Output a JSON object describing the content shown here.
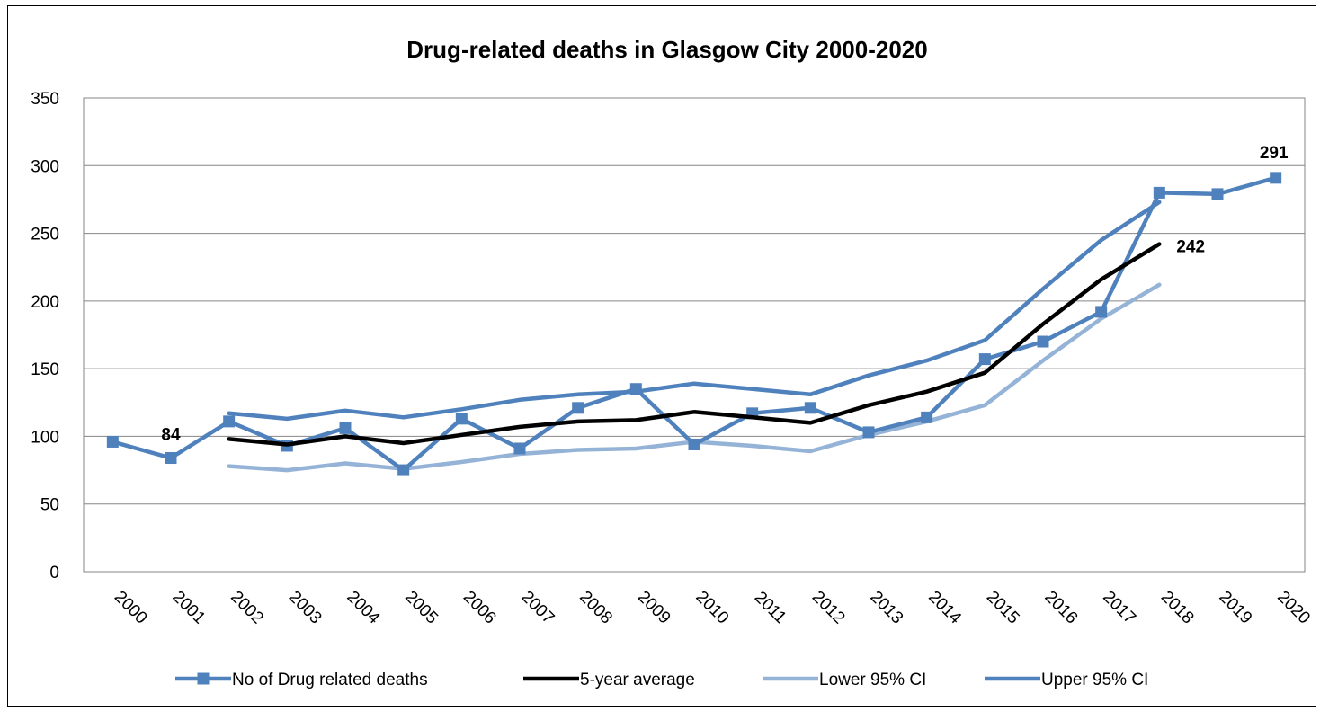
{
  "chart_data": {
    "type": "line",
    "title": "Drug-related deaths in Glasgow City 2000-2020",
    "xlabel": "",
    "ylabel": "",
    "categories": [
      "2000",
      "2001",
      "2002",
      "2003",
      "2004",
      "2005",
      "2006",
      "2007",
      "2008",
      "2009",
      "2010",
      "2011",
      "2012",
      "2013",
      "2014",
      "2015",
      "2016",
      "2017",
      "2018",
      "2019",
      "2020"
    ],
    "ylim": [
      0,
      350
    ],
    "yticks": [
      0,
      50,
      100,
      150,
      200,
      250,
      300,
      350
    ],
    "grid": "horizontal",
    "legend_position": "bottom",
    "series": [
      {
        "name": "No of Drug related deaths",
        "color": "#4F81BD",
        "marker": "square",
        "values": [
          96,
          84,
          111,
          93,
          106,
          75,
          113,
          91,
          121,
          135,
          94,
          117,
          121,
          103,
          114,
          157,
          170,
          192,
          280,
          279,
          291
        ]
      },
      {
        "name": "5-year average",
        "color": "#000000",
        "marker": "none",
        "values": [
          null,
          null,
          98,
          94,
          100,
          95,
          101,
          107,
          111,
          112,
          118,
          114,
          110,
          123,
          133,
          147,
          183,
          216,
          242,
          null,
          null
        ]
      },
      {
        "name": "Lower 95% CI",
        "color": "#95B3D7",
        "marker": "none",
        "values": [
          null,
          null,
          78,
          75,
          80,
          76,
          81,
          87,
          90,
          91,
          96,
          93,
          89,
          101,
          111,
          123,
          156,
          187,
          212,
          null,
          null
        ]
      },
      {
        "name": "Upper 95% CI",
        "color": "#4F81BD",
        "marker": "none",
        "values": [
          null,
          null,
          117,
          113,
          119,
          114,
          120,
          127,
          131,
          133,
          139,
          135,
          131,
          145,
          156,
          171,
          209,
          245,
          273,
          null,
          null
        ]
      }
    ],
    "data_labels": [
      {
        "series": "No of Drug related deaths",
        "category": "2001",
        "text": "84"
      },
      {
        "series": "5-year average",
        "category": "2018",
        "text": "242"
      },
      {
        "series": "No of Drug related deaths",
        "category": "2020",
        "text": "291"
      }
    ]
  }
}
